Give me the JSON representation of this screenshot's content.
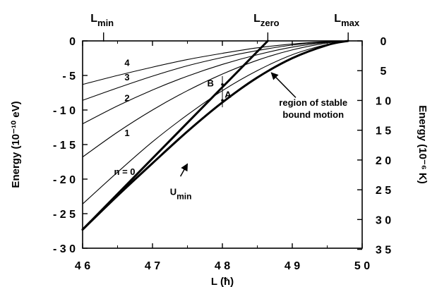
{
  "chart_data": {
    "type": "line",
    "xlabel": "L (ħ)",
    "ylabel_left": "Energy (10⁻¹⁰ eV)",
    "ylabel_right": "Energy (10⁻⁶ K)",
    "xlim": [
      46,
      50
    ],
    "ylim": [
      -30,
      0
    ],
    "x_ticks": [
      46,
      47,
      48,
      49,
      50
    ],
    "x_tick_labels": [
      "4 6",
      "4 7",
      "4 8",
      "4 9",
      "5 0"
    ],
    "y_ticks_left": [
      0,
      -5,
      -10,
      -15,
      -20,
      -25,
      -30
    ],
    "y_tick_labels_left": [
      "0",
      "- 5",
      "- 1 0",
      "- 1 5",
      "- 2 0",
      "- 2 5",
      "- 3 0"
    ],
    "y_ticks_right_K": [
      0,
      5,
      10,
      15,
      20,
      25,
      30,
      35
    ],
    "y_tick_labels_right": [
      "0",
      "5",
      "1 0",
      "1 5",
      "2 0",
      "2 5",
      "3 0",
      "3 5"
    ],
    "right_axis_scale": 1.1605,
    "top_markers": [
      {
        "label": "L",
        "sub": "min",
        "x": 46.3
      },
      {
        "label": "L",
        "sub": "zero",
        "x": 48.65
      },
      {
        "label": "L",
        "sub": "max",
        "x": 49.8
      }
    ],
    "series": [
      {
        "name": "U_min",
        "x": [
          46.0,
          46.5,
          47.0,
          47.5,
          48.0,
          48.5,
          49.0,
          49.5,
          49.8
        ],
        "y": [
          -27.3,
          -22.4,
          -17.7,
          -13.1,
          -8.9,
          -5.3,
          -2.5,
          -0.6,
          0.0
        ],
        "bold": true
      },
      {
        "name": "n = 0",
        "x": [
          46.0,
          46.5,
          47.0,
          47.5,
          48.0,
          48.5,
          49.0,
          49.5,
          49.8
        ],
        "y": [
          -23.6,
          -19.0,
          -14.6,
          -10.7,
          -7.2,
          -4.3,
          -2.0,
          -0.5,
          0.0
        ],
        "bold": false
      },
      {
        "name": "1",
        "x": [
          46.0,
          46.5,
          47.0,
          47.5,
          48.0,
          48.5,
          49.0,
          49.5,
          49.8
        ],
        "y": [
          -16.8,
          -13.2,
          -10.0,
          -7.2,
          -4.8,
          -2.8,
          -1.3,
          -0.3,
          0.0
        ],
        "bold": false
      },
      {
        "name": "2",
        "x": [
          46.0,
          46.5,
          47.0,
          47.5,
          48.0,
          48.5,
          49.0,
          49.5,
          49.8
        ],
        "y": [
          -12.0,
          -9.4,
          -7.1,
          -5.1,
          -3.4,
          -2.0,
          -0.9,
          -0.2,
          0.0
        ],
        "bold": false
      },
      {
        "name": "3",
        "x": [
          46.0,
          46.5,
          47.0,
          47.5,
          48.0,
          48.5,
          49.0,
          49.5,
          49.8
        ],
        "y": [
          -8.6,
          -6.8,
          -5.1,
          -3.6,
          -2.4,
          -1.4,
          -0.6,
          -0.15,
          0.0
        ],
        "bold": false
      },
      {
        "name": "4",
        "x": [
          46.0,
          46.5,
          47.0,
          47.5,
          48.0,
          48.5,
          49.0,
          49.5,
          49.8
        ],
        "y": [
          -6.3,
          -5.0,
          -3.8,
          -2.7,
          -1.8,
          -1.0,
          -0.45,
          -0.1,
          0.0
        ],
        "bold": false
      },
      {
        "name": "L_zero line",
        "x": [
          46.0,
          48.65
        ],
        "y": [
          -27.3,
          0.0
        ],
        "bold": true
      }
    ],
    "curve_labels": [
      {
        "text": "4",
        "x": 46.6,
        "y": -3.6
      },
      {
        "text": "3",
        "x": 46.6,
        "y": -5.7
      },
      {
        "text": "2",
        "x": 46.6,
        "y": -8.7
      },
      {
        "text": "1",
        "x": 46.6,
        "y": -13.8
      },
      {
        "text": "n  =  0",
        "x": 46.45,
        "y": -19.4
      }
    ],
    "points": [
      {
        "label": "B",
        "x": 48.0,
        "y": -6.3,
        "label_dx": -0.17,
        "label_dy": -0.3
      },
      {
        "label": "A",
        "x": 48.0,
        "y": -8.6,
        "label_dx": 0.08,
        "label_dy": 0.4
      }
    ],
    "annotations": [
      {
        "text_lines": [
          "region  of  stable",
          "bound  motion"
        ],
        "x": 49.3,
        "y": -9.4,
        "arrow_from": [
          49.05,
          -8.2
        ],
        "arrow_to": [
          48.7,
          -4.6
        ]
      },
      {
        "text": "U",
        "sub": "min",
        "x": 47.25,
        "y": -22.3,
        "arrow_from": [
          47.4,
          -19.6
        ],
        "arrow_to": [
          47.5,
          -17.8
        ]
      }
    ]
  }
}
